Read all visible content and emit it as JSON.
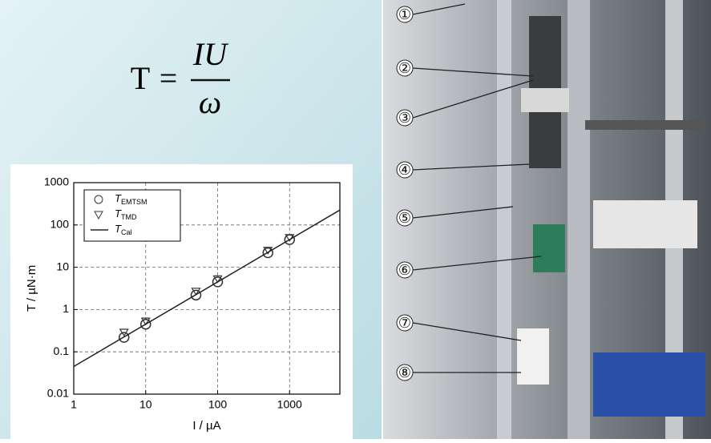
{
  "formula": {
    "lhs": "T",
    "equals": "=",
    "numerator": "IU",
    "denominator": "ω"
  },
  "chart_data": {
    "type": "scatter",
    "xlabel": "I / µA",
    "ylabel": "T / µN·m",
    "xscale": "log",
    "yscale": "log",
    "grid": true,
    "legend": "upper left",
    "xlim": [
      1,
      5000
    ],
    "ylim": [
      0.01,
      1000
    ],
    "xticks": [
      1,
      10,
      100,
      1000
    ],
    "yticks": [
      0.01,
      0.1,
      1,
      10,
      100,
      1000
    ],
    "series": [
      {
        "name": "TEMTSM",
        "marker": "circle",
        "color": "#333333",
        "x": [
          5,
          10,
          50,
          100,
          500,
          1000
        ],
        "values": [
          0.22,
          0.45,
          2.2,
          4.5,
          22,
          45
        ]
      },
      {
        "name": "TTMD",
        "marker": "triangle",
        "color": "#333333",
        "x": [
          5,
          10,
          50,
          100,
          500,
          1000
        ],
        "values": [
          0.3,
          0.55,
          2.8,
          5.5,
          26,
          52
        ]
      },
      {
        "name": "TCal",
        "marker": "line",
        "color": "#222222",
        "x": [
          1,
          5000
        ],
        "values": [
          0.045,
          225
        ]
      }
    ]
  },
  "photo_labels": [
    "①",
    "②",
    "③",
    "④",
    "⑤",
    "⑥",
    "⑦",
    "⑧"
  ]
}
